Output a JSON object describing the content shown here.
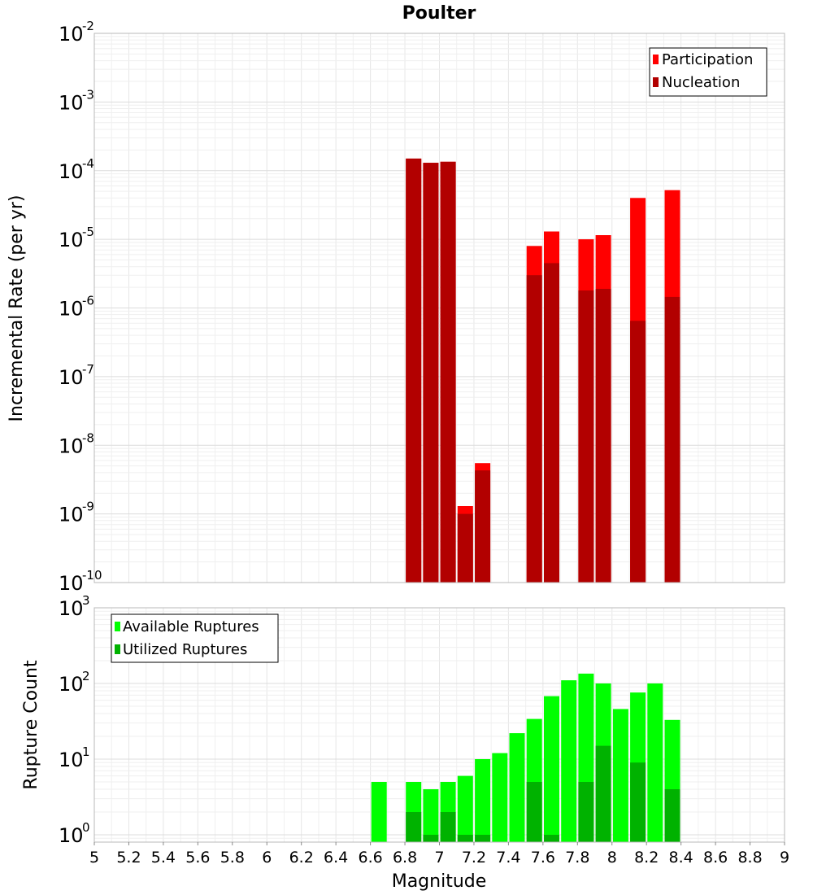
{
  "chart_data": [
    {
      "type": "bar",
      "title": "Poulter",
      "ylabel": "Incremental Rate (per yr)",
      "xlabel": "",
      "yscale": "log",
      "ylim": [
        1e-10,
        0.01
      ],
      "xlim": [
        5,
        9
      ],
      "legend_position": "top-right",
      "grid": true,
      "ytick_base": "10",
      "yticks": [
        {
          "exp": "-10",
          "value": 1e-10
        },
        {
          "exp": "-9",
          "value": 1e-09
        },
        {
          "exp": "-8",
          "value": 1e-08
        },
        {
          "exp": "-7",
          "value": 1e-07
        },
        {
          "exp": "-6",
          "value": 1e-06
        },
        {
          "exp": "-5",
          "value": 1e-05
        },
        {
          "exp": "-4",
          "value": 0.0001
        },
        {
          "exp": "-3",
          "value": 0.001
        },
        {
          "exp": "-2",
          "value": 0.01
        }
      ],
      "x": [
        6.85,
        6.95,
        7.05,
        7.15,
        7.25,
        7.55,
        7.65,
        7.85,
        7.95,
        8.15,
        8.35
      ],
      "series": [
        {
          "name": "Participation",
          "color": "#ff0000",
          "values": [
            0.00015,
            0.00013,
            0.000135,
            1.3e-09,
            5.5e-09,
            8e-06,
            1.3e-05,
            1e-05,
            1.15e-05,
            4e-05,
            5.2e-05
          ]
        },
        {
          "name": "Nucleation",
          "color": "#b20000",
          "values": [
            0.00015,
            0.00013,
            0.000135,
            1e-09,
            4.3e-09,
            3e-06,
            4.5e-06,
            1.8e-06,
            1.9e-06,
            6.5e-07,
            1.45e-06
          ]
        }
      ]
    },
    {
      "type": "bar",
      "title": "",
      "ylabel": "Rupture Count",
      "xlabel": "Magnitude",
      "yscale": "log",
      "ylim": [
        0.8,
        1000
      ],
      "xlim": [
        5,
        9
      ],
      "legend_position": "top-left",
      "grid": true,
      "ytick_base": "10",
      "yticks": [
        {
          "exp": "0",
          "value": 1
        },
        {
          "exp": "1",
          "value": 10
        },
        {
          "exp": "2",
          "value": 100
        },
        {
          "exp": "3",
          "value": 1000
        }
      ],
      "xticks": [
        "5",
        "5.2",
        "5.4",
        "5.6",
        "5.8",
        "6",
        "6.2",
        "6.4",
        "6.6",
        "6.8",
        "7",
        "7.2",
        "7.4",
        "7.6",
        "7.8",
        "8",
        "8.2",
        "8.4",
        "8.6",
        "8.8",
        "9"
      ],
      "x": [
        6.65,
        6.85,
        6.95,
        7.05,
        7.15,
        7.25,
        7.35,
        7.45,
        7.55,
        7.65,
        7.75,
        7.85,
        7.95,
        8.05,
        8.15,
        8.25,
        8.35
      ],
      "series": [
        {
          "name": "Available Ruptures",
          "color": "#00ff00",
          "values": [
            5,
            5,
            4,
            5,
            6,
            10,
            12,
            22,
            34,
            68,
            110,
            135,
            100,
            46,
            76,
            100,
            33
          ]
        },
        {
          "name": "Utilized Ruptures",
          "color": "#00b200",
          "values": [
            0,
            2,
            1,
            2,
            1,
            1,
            0,
            0,
            5,
            1,
            0,
            5,
            15,
            0,
            9,
            0,
            4
          ]
        }
      ]
    }
  ]
}
